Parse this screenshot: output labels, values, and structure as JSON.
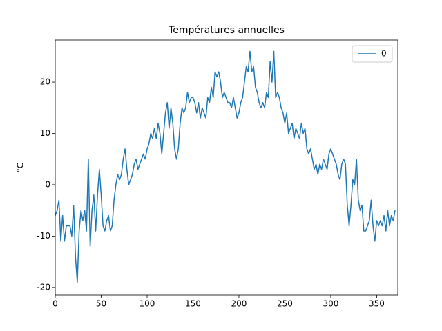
{
  "chart_data": {
    "type": "line",
    "title": "Températures annuelles",
    "y_label": "°C",
    "x": [
      0,
      2,
      4,
      6,
      8,
      10,
      12,
      14,
      16,
      18,
      20,
      22,
      24,
      26,
      28,
      30,
      32,
      34,
      36,
      38,
      40,
      42,
      44,
      46,
      48,
      50,
      52,
      54,
      56,
      58,
      60,
      62,
      64,
      66,
      68,
      70,
      72,
      74,
      76,
      78,
      80,
      82,
      84,
      86,
      88,
      90,
      92,
      94,
      96,
      98,
      100,
      102,
      104,
      106,
      108,
      110,
      112,
      114,
      116,
      118,
      120,
      122,
      124,
      126,
      128,
      130,
      132,
      134,
      136,
      138,
      140,
      142,
      144,
      146,
      148,
      150,
      152,
      154,
      156,
      158,
      160,
      162,
      164,
      166,
      168,
      170,
      172,
      174,
      176,
      178,
      180,
      182,
      184,
      186,
      188,
      190,
      192,
      194,
      196,
      198,
      200,
      202,
      204,
      206,
      208,
      210,
      212,
      214,
      216,
      218,
      220,
      222,
      224,
      226,
      228,
      230,
      232,
      234,
      236,
      238,
      240,
      242,
      244,
      246,
      248,
      250,
      252,
      254,
      256,
      258,
      260,
      262,
      264,
      266,
      268,
      270,
      272,
      274,
      276,
      278,
      280,
      282,
      284,
      286,
      288,
      290,
      292,
      294,
      296,
      298,
      300,
      302,
      304,
      306,
      308,
      310,
      312,
      314,
      316,
      318,
      320,
      322,
      324,
      326,
      328,
      330,
      332,
      334,
      336,
      338,
      340,
      342,
      344,
      346,
      348,
      350,
      352,
      354,
      356,
      358,
      360,
      362,
      364,
      366,
      368,
      370
    ],
    "series": [
      {
        "name": "0",
        "color": "#1f77b4",
        "values": [
          -6,
          -5,
          -3,
          -11,
          -6,
          -11,
          -8,
          -8,
          -8,
          -10,
          -4,
          -14,
          -19,
          -9,
          -5,
          -7,
          -5,
          -9,
          5,
          -12,
          -5,
          -2,
          -9,
          -2,
          3,
          -2,
          -8,
          -9,
          -7,
          -6,
          -9,
          -8,
          -3,
          0,
          2,
          1,
          2,
          5,
          7,
          3,
          0,
          1,
          2,
          4,
          5,
          3,
          4,
          5,
          6,
          5,
          7,
          8,
          10,
          9,
          11,
          9,
          12,
          10,
          6,
          10,
          14,
          16,
          11,
          15,
          12,
          7,
          5,
          7,
          12,
          15,
          14,
          15,
          18,
          16,
          17,
          17,
          16,
          14,
          16,
          13,
          15,
          14,
          13,
          17,
          16,
          19,
          17,
          22,
          21,
          22,
          20,
          17,
          18,
          17,
          16,
          16,
          15,
          17,
          15,
          13,
          14,
          16,
          17,
          20,
          23,
          22,
          26,
          22,
          23,
          19,
          18,
          16,
          15,
          16,
          15,
          18,
          17,
          24,
          20,
          26,
          17,
          18,
          17,
          15,
          14,
          12,
          14,
          10,
          11,
          12,
          9,
          11,
          10,
          9,
          12,
          10,
          11,
          7,
          6,
          7,
          5,
          3,
          4,
          2,
          4,
          3,
          5,
          4,
          3,
          6,
          7,
          6,
          5,
          4,
          2,
          1,
          4,
          5,
          4,
          -4,
          -8,
          -4,
          1,
          0,
          5,
          -3,
          -5,
          -4,
          -9,
          -9,
          -8,
          -7,
          -3,
          -8,
          -11,
          -7,
          -8,
          -7,
          -8,
          -6,
          -9,
          -5,
          -8,
          -6,
          -7,
          -5
        ]
      }
    ],
    "xlim": [
      0,
      373
    ],
    "ylim": [
      -21.5,
      28.2
    ],
    "xticks": [
      0,
      50,
      100,
      150,
      200,
      250,
      300,
      350
    ],
    "yticks": [
      -20,
      -10,
      0,
      10,
      20
    ],
    "legend": "upper right"
  }
}
